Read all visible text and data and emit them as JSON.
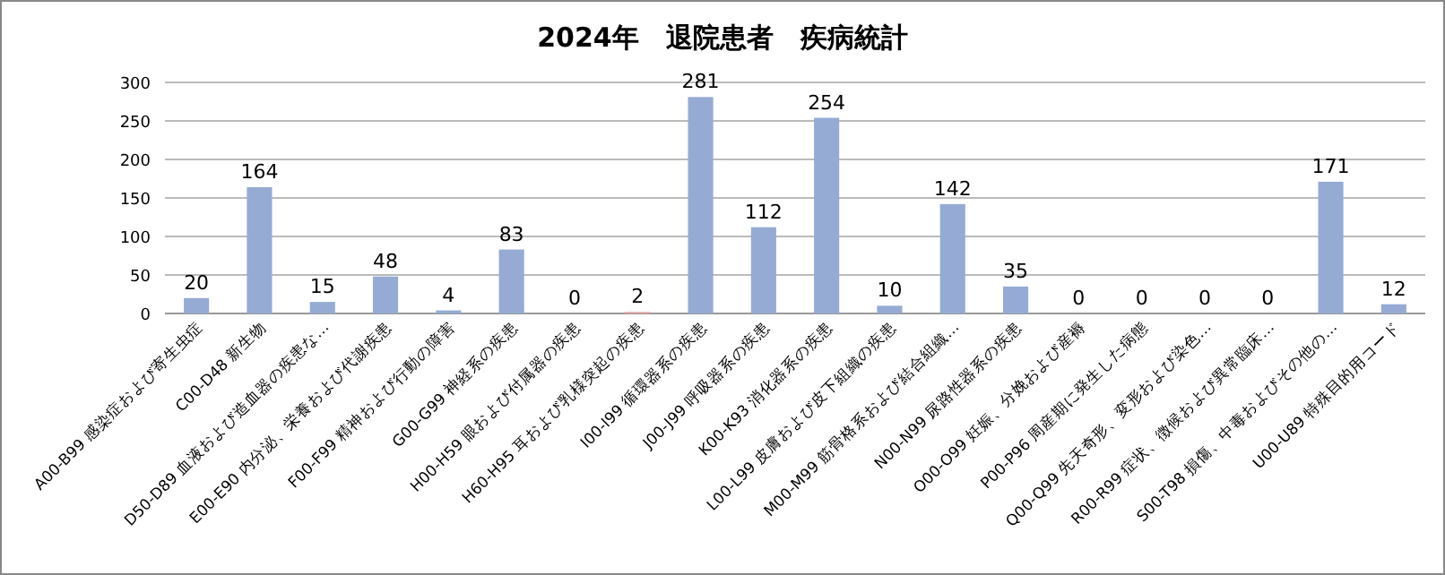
{
  "chart_data": {
    "type": "bar",
    "title": "2024年　退院患者　疾病統計",
    "categories": [
      "A00-B99 感染症および寄生虫症",
      "C00-D48 新生物",
      "D50-D89 血液および造血器の疾患な…",
      "E00-E90 内分泌、栄養および代謝疾患",
      "F00-F99 精神および行動の障害",
      "G00-G99 神経系の疾患",
      "H00-H59 眼および付属器の疾患",
      "H60-H95 耳および乳様突起の疾患",
      "I00-I99 循環器系の疾患",
      "J00-J99 呼吸器系の疾患",
      "K00-K93 消化器系の疾患",
      "L00-L99 皮膚および皮下組織の疾患",
      "M00-M99 筋骨格系および結合組織…",
      "N00-N99 尿路性器系の疾患",
      "O00-O99 妊娠、分娩および産褥",
      "P00-P96 周産期に発生した病態",
      "Q00-Q99 先天奇形、変形および染色…",
      "R00-R99 症状、徴候および異常臨床…",
      "S00-T98 損傷、中毒およびその他の…",
      "U00-U89 特殊目的用コード"
    ],
    "values": [
      20,
      164,
      15,
      48,
      4,
      83,
      0,
      2,
      281,
      112,
      254,
      10,
      142,
      35,
      0,
      0,
      0,
      0,
      171,
      12
    ],
    "colors": [
      "#95abd3",
      "#95abd3",
      "#95abd3",
      "#95abd3",
      "#95abd3",
      "#95abd3",
      "#95abd3",
      "#e3a3a3",
      "#95abd3",
      "#95abd3",
      "#95abd3",
      "#95abd3",
      "#95abd3",
      "#95abd3",
      "#95abd3",
      "#95abd3",
      "#95abd3",
      "#95abd3",
      "#95abd3",
      "#95abd3"
    ],
    "ylim": [
      0,
      300
    ],
    "yticks": [
      0,
      50,
      100,
      150,
      200,
      250,
      300
    ],
    "grid": "y",
    "data_labels": true
  }
}
